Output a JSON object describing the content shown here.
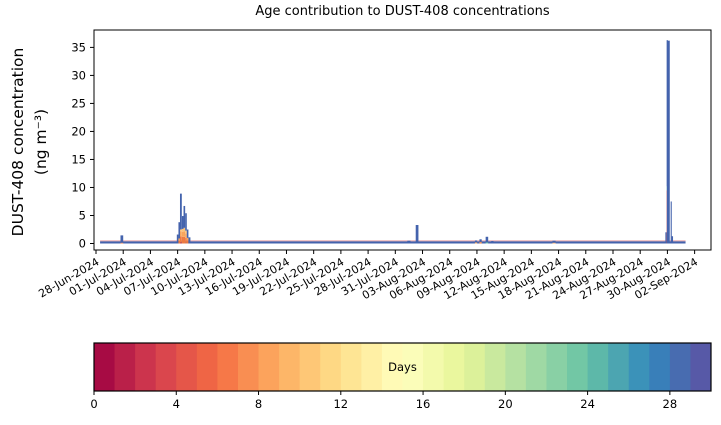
{
  "chart_data": {
    "type": "area",
    "title": "Age contribution to DUST-408 concentrations",
    "y_axis": {
      "label_line1": "DUST-408 concentration",
      "label_line2": "(ng m⁻³)",
      "ticks": [
        0,
        5,
        10,
        15,
        20,
        25,
        30,
        35
      ],
      "ylim": [
        -1.2,
        38.1
      ]
    },
    "x_axis": {
      "tick_interval_days": 3,
      "tick_labels": [
        "28-Jun-2024",
        "01-Jul-2024",
        "04-Jul-2024",
        "07-Jul-2024",
        "10-Jul-2024",
        "13-Jul-2024",
        "16-Jul-2024",
        "19-Jul-2024",
        "22-Jul-2024",
        "25-Jul-2024",
        "28-Jul-2024",
        "31-Jul-2024",
        "03-Aug-2024",
        "06-Aug-2024",
        "09-Aug-2024",
        "12-Aug-2024",
        "15-Aug-2024",
        "18-Aug-2024",
        "21-Aug-2024",
        "24-Aug-2024",
        "27-Aug-2024",
        "30-Aug-2024",
        "02-Sep-2024"
      ]
    },
    "colorbar": {
      "label": "Days",
      "min": 0,
      "max": 30,
      "segments": 30,
      "ticks": [
        0,
        4,
        8,
        12,
        16,
        20,
        24,
        28
      ],
      "spectral_anchors": [
        "#9e0142",
        "#d53e4f",
        "#f46d43",
        "#fdae61",
        "#fee08b",
        "#ffffbf",
        "#e6f598",
        "#abdda4",
        "#66c2a5",
        "#3288bd",
        "#5e4fa2"
      ]
    },
    "series_colors": {
      "blue": "#4463ad",
      "pink": "#e28f93",
      "red": "#d7413e",
      "deep_orange": "#ef7a40",
      "orange": "#f9a55b",
      "light_orange": "#fdc377",
      "teal": "#72c6a5"
    },
    "baseline": {
      "start_day": 0.45,
      "end_day": 65.0,
      "blue_height": 0.4,
      "pink_height": 0.14
    },
    "columns": [
      [
        2.85,
        0.3,
        [
          [
            "deep_orange",
            0.15
          ],
          [
            "blue",
            1.3
          ]
        ]
      ],
      [
        9.0,
        0.18,
        [
          [
            "blue",
            1.6
          ]
        ]
      ],
      [
        9.18,
        0.18,
        [
          [
            "deep_orange",
            0.5
          ],
          [
            "orange",
            0.4
          ],
          [
            "blue",
            2.9
          ]
        ]
      ],
      [
        9.36,
        0.2,
        [
          [
            "red",
            0.2
          ],
          [
            "deep_orange",
            1.1
          ],
          [
            "orange",
            0.9
          ],
          [
            "light_orange",
            0.3
          ],
          [
            "blue",
            6.4
          ]
        ]
      ],
      [
        9.56,
        0.18,
        [
          [
            "deep_orange",
            1.2
          ],
          [
            "orange",
            0.9
          ],
          [
            "light_orange",
            0.5
          ],
          [
            "blue",
            2.3
          ]
        ]
      ],
      [
        9.74,
        0.18,
        [
          [
            "deep_orange",
            1.2
          ],
          [
            "orange",
            1.0
          ],
          [
            "light_orange",
            0.6
          ],
          [
            "blue",
            3.9
          ]
        ]
      ],
      [
        9.92,
        0.18,
        [
          [
            "deep_orange",
            1.0
          ],
          [
            "orange",
            0.8
          ],
          [
            "light_orange",
            0.5
          ],
          [
            "blue",
            3.1
          ]
        ]
      ],
      [
        10.1,
        0.18,
        [
          [
            "deep_orange",
            0.6
          ],
          [
            "orange",
            0.4
          ],
          [
            "blue",
            1.5
          ]
        ]
      ],
      [
        10.3,
        0.22,
        [
          [
            "blue",
            1.1
          ]
        ]
      ],
      [
        23.4,
        0.3,
        [
          [
            "blue",
            0.3
          ]
        ]
      ],
      [
        25.0,
        0.3,
        [
          [
            "blue",
            0.25
          ]
        ]
      ],
      [
        31.6,
        0.25,
        [
          [
            "blue",
            0.15
          ]
        ]
      ],
      [
        34.5,
        0.35,
        [
          [
            "blue",
            0.5
          ]
        ]
      ],
      [
        35.4,
        0.3,
        [
          [
            "blue",
            3.3
          ]
        ]
      ],
      [
        41.2,
        0.25,
        [
          [
            "blue",
            0.25
          ]
        ]
      ],
      [
        41.9,
        0.25,
        [
          [
            "orange",
            0.2
          ],
          [
            "blue",
            0.35
          ]
        ]
      ],
      [
        42.4,
        0.25,
        [
          [
            "deep_orange",
            0.15
          ],
          [
            "orange",
            0.15
          ],
          [
            "blue",
            0.45
          ]
        ]
      ],
      [
        43.1,
        0.28,
        [
          [
            "teal",
            0.2
          ],
          [
            "blue",
            1.0
          ]
        ]
      ],
      [
        43.7,
        0.25,
        [
          [
            "blue",
            0.45
          ]
        ]
      ],
      [
        44.2,
        0.25,
        [
          [
            "blue",
            0.3
          ]
        ]
      ],
      [
        44.9,
        0.25,
        [
          [
            "blue",
            0.2
          ]
        ]
      ],
      [
        47.0,
        0.25,
        [
          [
            "blue",
            0.15
          ]
        ]
      ],
      [
        50.5,
        0.35,
        [
          [
            "orange",
            0.15
          ],
          [
            "blue",
            0.35
          ]
        ]
      ],
      [
        62.85,
        0.15,
        [
          [
            "blue",
            2.0
          ]
        ]
      ],
      [
        62.98,
        0.12,
        [
          [
            "red",
            9.5
          ],
          [
            "teal",
            0.7
          ],
          [
            "blue",
            26.1
          ]
        ]
      ],
      [
        63.1,
        0.32,
        [
          [
            "blue",
            36.2
          ]
        ]
      ],
      [
        63.42,
        0.12,
        [
          [
            "blue",
            7.5
          ]
        ]
      ],
      [
        63.54,
        0.16,
        [
          [
            "blue",
            1.3
          ]
        ]
      ]
    ]
  }
}
